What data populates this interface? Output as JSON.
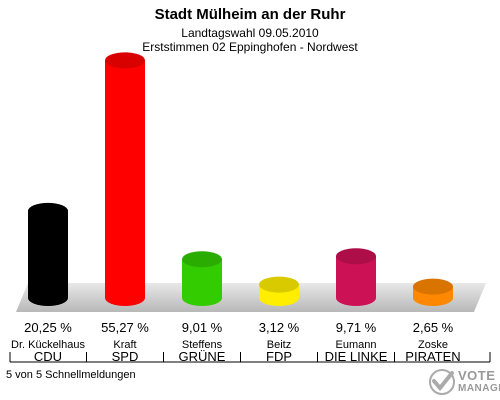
{
  "header": {
    "title": "Stadt Mülheim an der Ruhr",
    "subtitle": "Landtagswahl 09.05.2010",
    "district": "Erststimmen 02 Eppinghofen - Nordwest"
  },
  "chart_data": {
    "type": "bar",
    "title": "Stadt Mülheim an der Ruhr",
    "subtitle": "Landtagswahl 09.05.2010 — Erststimmen 02 Eppinghofen - Nordwest",
    "categories": [
      "CDU",
      "SPD",
      "GRÜNE",
      "FDP",
      "DIE LINKE",
      "PIRATEN"
    ],
    "candidates": [
      "Dr. Kückelhaus",
      "Kraft",
      "Steffens",
      "Beitz",
      "Eumann",
      "Zoske"
    ],
    "values": [
      20.25,
      55.27,
      9.01,
      3.12,
      9.71,
      2.65
    ],
    "value_labels": [
      "20,25 %",
      "55,27 %",
      "9,01 %",
      "3,12 %",
      "9,71 %",
      "2,65 %"
    ],
    "colors": [
      "#000000",
      "#ff0000",
      "#33cc00",
      "#ffee00",
      "#cc1155",
      "#ff8800"
    ],
    "unit": "%",
    "grid": false,
    "legend": "none"
  },
  "footer": {
    "note": "5 von 5 Schnellmeldungen",
    "logo_line1": "VOTE",
    "logo_line2": "MANAGER"
  }
}
